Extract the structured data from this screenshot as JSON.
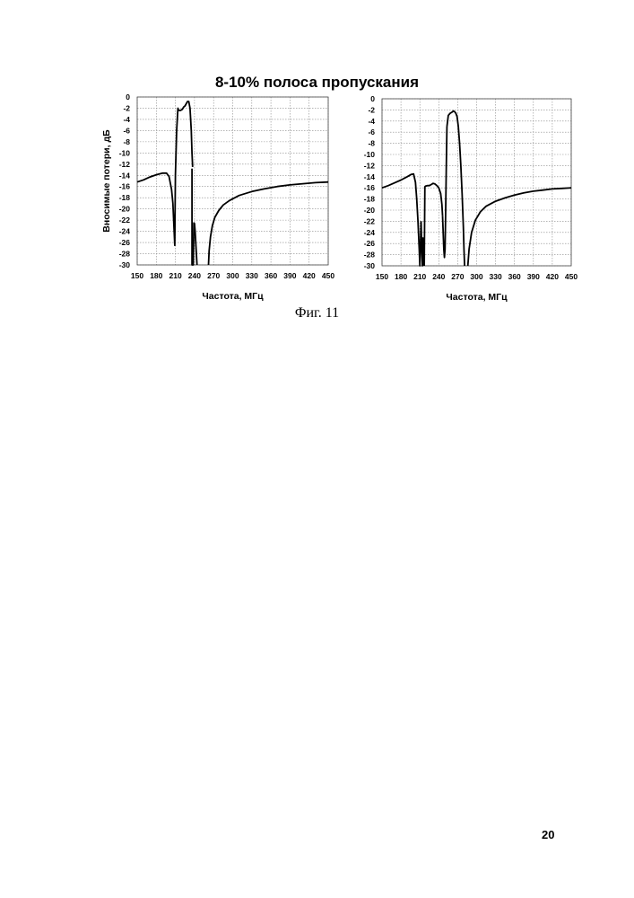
{
  "figure": {
    "title": "8-10% полоса пропускания",
    "caption": "Фиг. 11"
  },
  "page_number": "20",
  "chart_data": [
    {
      "type": "line",
      "title": "",
      "xlabel": "Частота, МГц",
      "ylabel": "Вносимые потери, дБ",
      "xlim": [
        150,
        450
      ],
      "ylim": [
        -30,
        0
      ],
      "xticks": [
        150,
        180,
        210,
        240,
        270,
        300,
        330,
        360,
        390,
        420,
        450
      ],
      "yticks": [
        0,
        -2,
        -4,
        -6,
        -8,
        -10,
        -12,
        -14,
        -16,
        -18,
        -20,
        -22,
        -24,
        -26,
        -28,
        -30
      ],
      "grid": true,
      "series": [
        {
          "x": [
            150,
            160,
            170,
            180,
            190,
            196,
            200,
            204,
            206,
            208,
            209,
            210,
            212,
            214,
            215,
            218,
            221,
            223,
            225,
            227,
            229,
            231,
            233,
            235,
            236,
            237
          ],
          "y": [
            -15.2,
            -14.8,
            -14.3,
            -13.9,
            -13.6,
            -13.6,
            -14.2,
            -16.5,
            -19,
            -24,
            -26.5,
            -14,
            -6,
            -2,
            -2.4,
            -2.4,
            -2.2,
            -1.8,
            -1.6,
            -1.2,
            -0.8,
            -0.8,
            -2,
            -6,
            -10,
            -12.5
          ]
        },
        {
          "x": [
            236,
            236,
            237,
            238,
            239,
            240,
            241,
            242,
            243,
            244
          ],
          "y": [
            -12.8,
            -30,
            -30,
            -30,
            -22.5,
            -22.6,
            -24,
            -26,
            -28,
            -30
          ]
        },
        {
          "x": [
            262,
            263,
            265,
            268,
            272,
            278,
            285,
            295,
            310,
            330,
            350,
            370,
            390,
            410,
            430,
            450
          ],
          "y": [
            -30,
            -27.5,
            -25,
            -23,
            -21.5,
            -20.3,
            -19.3,
            -18.5,
            -17.6,
            -16.9,
            -16.4,
            -16,
            -15.7,
            -15.5,
            -15.3,
            -15.2
          ]
        }
      ]
    },
    {
      "type": "line",
      "title": "",
      "xlabel": "Частота, МГц",
      "ylabel": "",
      "xlim": [
        150,
        450
      ],
      "ylim": [
        -30,
        0
      ],
      "xticks": [
        150,
        180,
        210,
        240,
        270,
        300,
        330,
        360,
        390,
        420,
        450
      ],
      "yticks": [
        0,
        -2,
        -4,
        -6,
        -8,
        -10,
        -12,
        -14,
        -16,
        -18,
        -20,
        -22,
        -24,
        -26,
        -28,
        -30
      ],
      "grid": true,
      "series": [
        {
          "x": [
            150,
            160,
            170,
            180,
            190,
            196,
            200,
            203,
            205,
            207,
            209,
            210,
            211,
            212
          ],
          "y": [
            -16,
            -15.6,
            -15.1,
            -14.6,
            -14,
            -13.6,
            -13.5,
            -15,
            -18,
            -22,
            -27,
            -30,
            -26,
            -22
          ]
        },
        {
          "x": [
            212,
            213,
            214,
            215,
            216
          ],
          "y": [
            -22,
            -27,
            -30,
            -25,
            -30
          ]
        },
        {
          "x": [
            217,
            218,
            219,
            222,
            225,
            228,
            231,
            234,
            237,
            240,
            243,
            245,
            246
          ],
          "y": [
            -30,
            -15.8,
            -15.7,
            -15.6,
            -15.6,
            -15.4,
            -15.2,
            -15.3,
            -15.6,
            -16,
            -17,
            -19,
            -21
          ]
        },
        {
          "x": [
            246,
            247,
            248,
            249,
            250,
            251,
            252,
            253
          ],
          "y": [
            -21,
            -24,
            -27,
            -28.5,
            -27,
            -20,
            -12,
            -5
          ]
        },
        {
          "x": [
            253,
            255,
            258,
            261,
            263,
            265,
            267,
            269,
            271,
            273,
            275,
            277,
            279,
            280,
            281
          ],
          "y": [
            -5,
            -3,
            -2.6,
            -2.4,
            -2.2,
            -2.3,
            -2.6,
            -3.2,
            -5,
            -8,
            -12,
            -17,
            -23,
            -27,
            -30
          ]
        },
        {
          "x": [
            286,
            288,
            292,
            298,
            306,
            315,
            330,
            345,
            360,
            375,
            390,
            405,
            420,
            435,
            450
          ],
          "y": [
            -30,
            -27,
            -24,
            -21.8,
            -20.3,
            -19.3,
            -18.4,
            -17.8,
            -17.3,
            -16.9,
            -16.6,
            -16.4,
            -16.2,
            -16.1,
            -16
          ]
        }
      ]
    }
  ]
}
